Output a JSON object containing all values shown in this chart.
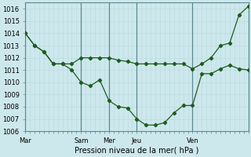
{
  "xlabel": "Pression niveau de la mer( hPa )",
  "ylim": [
    1006,
    1016.5
  ],
  "xlim": [
    0,
    96
  ],
  "yticks": [
    1006,
    1007,
    1008,
    1009,
    1010,
    1011,
    1012,
    1013,
    1014,
    1015,
    1016
  ],
  "xtick_positions": [
    0,
    24,
    36,
    48,
    72,
    96
  ],
  "xtick_labels": [
    "Mar",
    "Sam",
    "Mer",
    "Jeu",
    "Ven",
    ""
  ],
  "vlines": [
    0,
    24,
    36,
    48,
    72,
    96
  ],
  "bg_color": "#cde8ec",
  "grid_minor_color": "#b8d8de",
  "grid_major_color": "#9dc8cf",
  "line_color": "#1e5c1e",
  "line1_x": [
    0,
    4,
    8,
    12,
    16,
    20,
    24,
    28,
    32,
    36,
    40,
    44,
    48,
    52,
    56,
    60,
    64,
    68,
    72,
    76,
    80,
    84,
    88,
    92,
    96
  ],
  "line1_y": [
    1014.0,
    1013.0,
    1012.5,
    1011.5,
    1011.5,
    1011.5,
    1012.0,
    1012.0,
    1012.0,
    1012.0,
    1011.8,
    1011.7,
    1011.5,
    1011.5,
    1011.5,
    1011.5,
    1011.5,
    1011.5,
    1011.1,
    1011.5,
    1012.0,
    1013.0,
    1013.2,
    1015.5,
    1016.2
  ],
  "line2_x": [
    0,
    4,
    8,
    12,
    16,
    20,
    24,
    28,
    32,
    36,
    40,
    44,
    48,
    52,
    56,
    60,
    64,
    68,
    72,
    76,
    80,
    84,
    88,
    92,
    96
  ],
  "line2_y": [
    1014.0,
    1013.0,
    1012.5,
    1011.5,
    1011.5,
    1011.0,
    1010.0,
    1009.7,
    1010.2,
    1008.5,
    1008.0,
    1007.9,
    1007.0,
    1006.5,
    1006.5,
    1006.7,
    1007.5,
    1008.1,
    1008.1,
    1010.7,
    1010.7,
    1011.1,
    1011.4,
    1011.1,
    1011.0
  ]
}
